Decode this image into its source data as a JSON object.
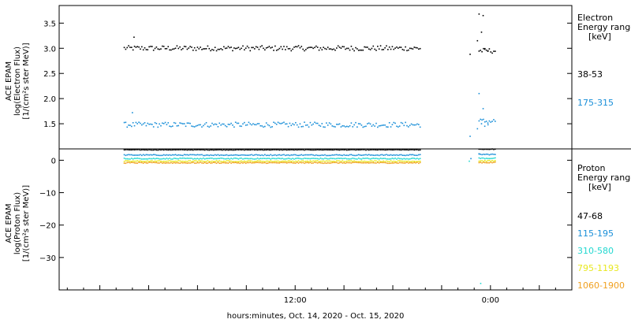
{
  "chart_data": [
    {
      "type": "scatter",
      "panel": "electron",
      "ylabel_lines": [
        "ACE EPAM",
        "log(Electron Flux)",
        "[1/(cm²s ster MeV)]"
      ],
      "ylim": [
        1.0,
        3.85
      ],
      "yticks": [
        {
          "v": 1.5,
          "label": "1.5"
        },
        {
          "v": 2.0,
          "label": "2.0"
        },
        {
          "v": 2.5,
          "label": "2.5"
        },
        {
          "v": 3.0,
          "label": "3.0"
        },
        {
          "v": 3.5,
          "label": "3.5"
        }
      ],
      "legend": {
        "title_lines": [
          "Electron",
          "Energy ranges",
          "[keV]"
        ],
        "entries": [
          {
            "label": "38-53",
            "color": "#000000"
          },
          {
            "label": "175-315",
            "color": "#1a8fd8"
          }
        ]
      },
      "series": [
        {
          "name": "38-53",
          "color": "#000000",
          "base": 3.0,
          "noise": 0.05,
          "gap_base": 2.95,
          "spikes": [
            [
              23.3,
              3.68
            ],
            [
              23.55,
              3.65
            ],
            [
              23.45,
              3.32
            ],
            [
              23.2,
              3.15
            ],
            [
              22.75,
              2.88
            ],
            [
              23.65,
              2.98
            ],
            [
              23.85,
              2.95
            ],
            [
              2.1,
              3.22
            ]
          ]
        },
        {
          "name": "175-315",
          "color": "#1a8fd8",
          "base": 1.48,
          "noise": 0.05,
          "gap_base": 1.55,
          "spikes": [
            [
              23.3,
              2.1
            ],
            [
              23.55,
              1.8
            ],
            [
              23.45,
              1.5
            ],
            [
              23.2,
              1.4
            ],
            [
              22.75,
              1.25
            ],
            [
              23.65,
              1.45
            ],
            [
              23.85,
              1.48
            ],
            [
              2.0,
              1.72
            ]
          ]
        }
      ]
    },
    {
      "type": "scatter",
      "panel": "proton",
      "ylabel_lines": [
        "ACE EPAM",
        "log(Proton Flux)",
        "[1/(cm²s ster MeV)]"
      ],
      "ylim": [
        -40.0,
        3.5
      ],
      "yticks": [
        {
          "v": 0,
          "label": "0"
        },
        {
          "v": -10,
          "label": "−10"
        },
        {
          "v": -20,
          "label": "−20"
        },
        {
          "v": -30,
          "label": "−30"
        }
      ],
      "legend": {
        "title_lines": [
          "Proton",
          "Energy ranges",
          "[keV]"
        ],
        "entries": [
          {
            "label": "47-68",
            "color": "#000000"
          },
          {
            "label": "115-195",
            "color": "#1a8fd8"
          },
          {
            "label": "310-580",
            "color": "#22d8d0"
          },
          {
            "label": "795-1193",
            "color": "#e8e820"
          },
          {
            "label": "1060-1900",
            "color": "#f0a020"
          }
        ]
      },
      "series": [
        {
          "name": "47-68",
          "color": "#000000",
          "base": 3.2,
          "noise": 0.08,
          "gap_base": 3.4,
          "spikes": [
            [
              22.8,
              4.5
            ],
            [
              23.3,
              3.8
            ]
          ]
        },
        {
          "name": "115-195",
          "color": "#1a8fd8",
          "base": 1.6,
          "noise": 0.15,
          "gap_base": 1.8,
          "spikes": [
            [
              22.8,
              0.5
            ],
            [
              23.3,
              2.0
            ]
          ]
        },
        {
          "name": "310-580",
          "color": "#22d8d0",
          "base": 0.5,
          "noise": 0.15,
          "gap_base": 0.6,
          "spikes": [
            [
              22.7,
              -0.3
            ],
            [
              23.4,
              -38.0
            ]
          ]
        },
        {
          "name": "795-1193",
          "color": "#e8e820",
          "base": -0.3,
          "noise": 0.15,
          "gap_base": -0.2,
          "spikes": []
        },
        {
          "name": "1060-1900",
          "color": "#f0a020",
          "base": -0.8,
          "noise": 0.15,
          "gap_base": -0.7,
          "spikes": []
        }
      ]
    }
  ],
  "x_axis": {
    "xlim": [
      -2.5,
      29.0
    ],
    "data_range": [
      1.5,
      19.7
    ],
    "gap_range": [
      22.5,
      24.3
    ],
    "major_ticks": [
      {
        "v": 12,
        "label": "12:00"
      },
      {
        "v": 24,
        "label": "0:00"
      }
    ],
    "minor_tick_step": 1,
    "label": "hours:minutes, Oct. 14, 2020 - Oct. 15, 2020"
  }
}
